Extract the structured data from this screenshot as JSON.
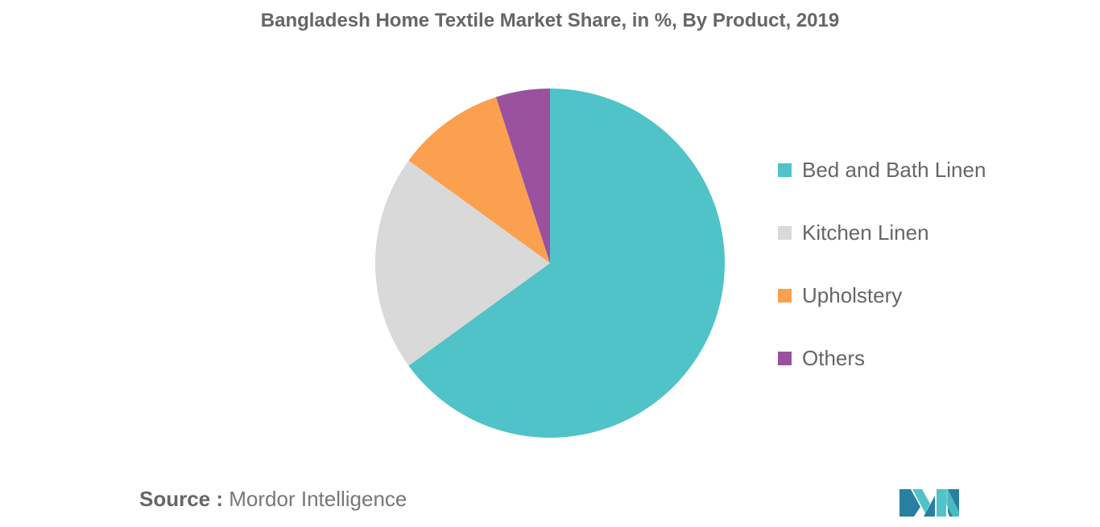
{
  "colors": {
    "bed_bath": "#4fc3c8",
    "kitchen": "#d9d9d9",
    "upholstery": "#fba04f",
    "others": "#9a529e",
    "title": "#666666",
    "logo_dark": "#2a7fa0",
    "logo_light": "#4fc3c8"
  },
  "chart_data": {
    "type": "pie",
    "title": "Bangladesh Home Textile Market Share, in %, By Product, 2019",
    "slices": [
      {
        "label": "Bed and Bath Linen",
        "value": 65,
        "color": "#4fc3c8"
      },
      {
        "label": "Kitchen Linen",
        "value": 20,
        "color": "#d9d9d9"
      },
      {
        "label": "Upholstery",
        "value": 10,
        "color": "#fba04f"
      },
      {
        "label": "Others",
        "value": 5,
        "color": "#9a529e"
      }
    ],
    "legend_position": "right"
  },
  "legend": [
    {
      "label": "Bed and Bath Linen",
      "icon": "square-swatch-icon"
    },
    {
      "label": "Kitchen Linen",
      "icon": "square-swatch-icon"
    },
    {
      "label": "Upholstery",
      "icon": "square-swatch-icon"
    },
    {
      "label": "Others",
      "icon": "square-swatch-icon"
    }
  ],
  "source": {
    "prefix": "Source :",
    "text": "Mordor Intelligence"
  },
  "logo": {
    "icon": "mordor-intelligence-logo-icon"
  }
}
